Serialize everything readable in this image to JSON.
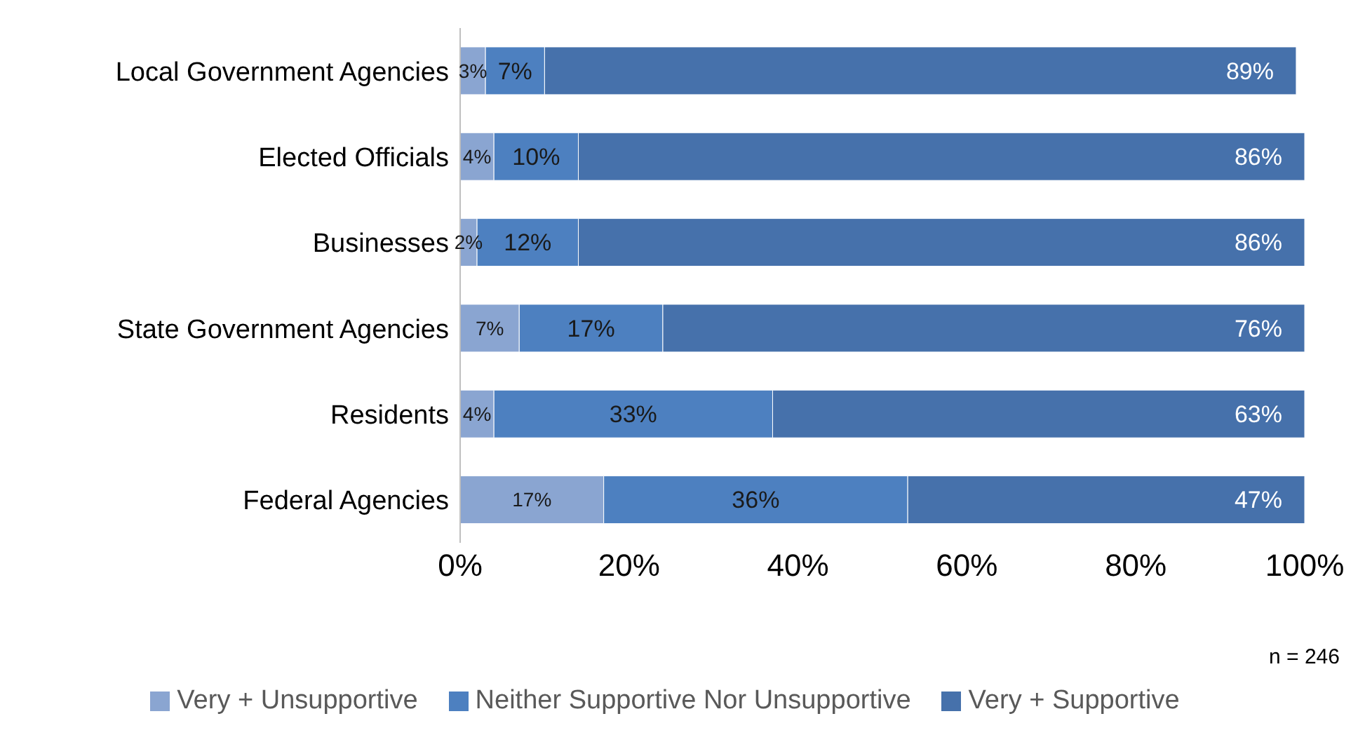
{
  "chart_data": {
    "type": "bar",
    "orientation": "horizontal",
    "stacked": true,
    "categories": [
      "Local Government  Agencies",
      "Elected Officials",
      "Businesses",
      "State Government  Agencies",
      "Residents",
      "Federal Agencies"
    ],
    "series": [
      {
        "name": "Very + Unsupportive",
        "color": "#8aa5d1",
        "values": [
          3,
          4,
          2,
          7,
          4,
          17
        ],
        "value_labels": [
          "3%",
          "4%",
          "2%",
          "7%",
          "4%",
          "17%"
        ]
      },
      {
        "name": "Neither  Supportive  Nor Unsupportive",
        "color": "#4d80c0",
        "values": [
          7,
          10,
          12,
          17,
          33,
          36
        ],
        "value_labels": [
          "7%",
          "10%",
          "12%",
          "17%",
          "33%",
          "36%"
        ]
      },
      {
        "name": "Very + Supportive",
        "color": "#4671ab",
        "values": [
          89,
          86,
          86,
          76,
          63,
          47
        ],
        "value_labels": [
          "89%",
          "86%",
          "86%",
          "76%",
          "63%",
          "47%"
        ]
      }
    ],
    "xlim": [
      0,
      100
    ],
    "xticks": [
      {
        "value": 0,
        "label": "0%"
      },
      {
        "value": 20,
        "label": "20%"
      },
      {
        "value": 40,
        "label": "40%"
      },
      {
        "value": 60,
        "label": "60%"
      },
      {
        "value": 80,
        "label": "80%"
      },
      {
        "value": 100,
        "label": "100%"
      }
    ],
    "legend": "bottom",
    "grid": false,
    "annotations": [
      "n = 246"
    ]
  }
}
